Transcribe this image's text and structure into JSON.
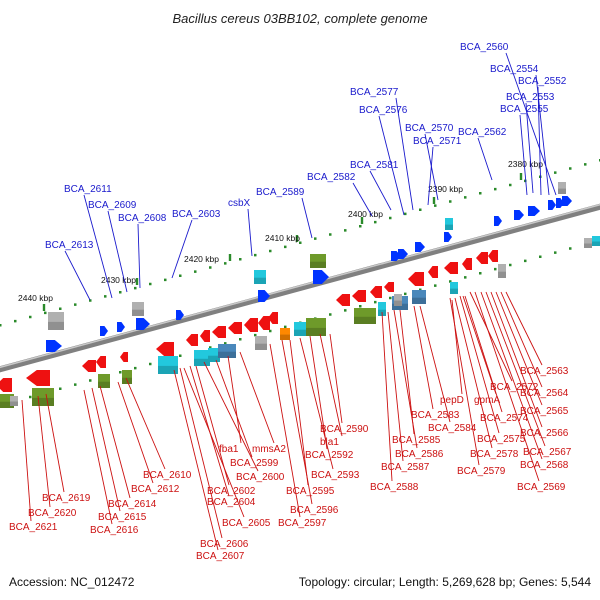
{
  "title": "Bacillus cereus 03BB102, complete genome",
  "accession": "Accession: NC_012472",
  "topology": "Topology: circular; Length: 5,269,628 bp; Genes: 5,544",
  "colors": {
    "background": "#ffffff",
    "backbone": "#808080",
    "forward_gene": "#0033ff",
    "reverse_gene": "#ee1111",
    "forward_label": "#1a1acc",
    "reverse_label": "#cc1111",
    "tick": "#2a8a2a",
    "cog_green": "#6e9a2a",
    "cog_cyan": "#22c8dd",
    "cog_gray": "#b0b0b0",
    "cog_steel": "#4a88bb"
  },
  "kbp_ticks": [
    "2380 kbp",
    "2390 kbp",
    "2400 kbp",
    "2410 kbp",
    "2420 kbp",
    "2430 kbp",
    "2440 kbp"
  ],
  "forward_labels": [
    "BCA_2560",
    "BCA_2554",
    "BCA_2552",
    "BCA_2553",
    "BCA_2555",
    "BCA_2577",
    "BCA_2576",
    "BCA_2570",
    "BCA_2571",
    "BCA_2562",
    "BCA_2581",
    "BCA_2582",
    "BCA_2589",
    "csbX",
    "BCA_2603",
    "BCA_2611",
    "BCA_2609",
    "BCA_2608",
    "BCA_2613"
  ],
  "reverse_labels": [
    "BCA_2563",
    "BCA_2564",
    "BCA_2565",
    "BCA_2566",
    "BCA_2567",
    "BCA_2568",
    "BCA_2569",
    "pepD",
    "gpmA",
    "BCA_2572",
    "BCA_2574",
    "BCA_2575",
    "BCA_2578",
    "BCA_2579",
    "BCA_2583",
    "BCA_2584",
    "BCA_2585",
    "BCA_2586",
    "BCA_2587",
    "BCA_2588",
    "BCA_2590",
    "bla1",
    "BCA_2592",
    "BCA_2593",
    "fba1",
    "mmsA2",
    "BCA_2599",
    "BCA_2600",
    "BCA_2595",
    "BCA_2596",
    "BCA_2597",
    "BCA_2602",
    "BCA_2604",
    "BCA_2605",
    "BCA_2606",
    "BCA_2607",
    "BCA_2610",
    "BCA_2612",
    "BCA_2614",
    "BCA_2615",
    "BCA_2616",
    "BCA_2619",
    "BCA_2620",
    "BCA_2621"
  ]
}
